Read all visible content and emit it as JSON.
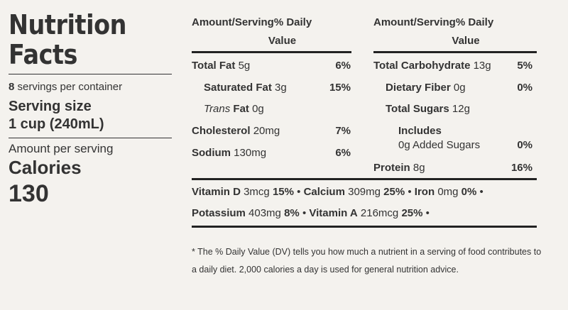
{
  "panel": {
    "title_line1": "Nutrition",
    "title_line2": "Facts",
    "servings_count": "8",
    "servings_text": " servings per container",
    "serving_size_label": "Serving size",
    "serving_size_value": "1 cup (240mL)",
    "amount_per_serving": "Amount per serving",
    "calories_label": "Calories",
    "calories_value": "130"
  },
  "header": {
    "line1": "Amount/Serving% Daily",
    "line2": "Value"
  },
  "left_table": [
    {
      "name": "Total Fat",
      "amount": "5g",
      "dv": "6%"
    },
    {
      "name": "Saturated Fat",
      "amount": "3g",
      "dv": "15%"
    },
    {
      "name": "Trans",
      "name_suffix": " Fat",
      "amount": "0g",
      "dv": ""
    },
    {
      "name": "Cholesterol",
      "amount": "20mg",
      "dv": "7%"
    },
    {
      "name": "Sodium",
      "amount": "130mg",
      "dv": "6%"
    }
  ],
  "right_table": [
    {
      "name": "Total Carbohydrate",
      "amount": "13g",
      "dv": "5%"
    },
    {
      "name": "Dietary Fiber",
      "amount": "0g",
      "dv": "0%"
    },
    {
      "name": "Total Sugars",
      "amount": "12g",
      "dv": ""
    },
    {
      "name": "Includes",
      "amount": "0g Added Sugars",
      "dv": "0%"
    },
    {
      "name": "Protein",
      "amount": "8g",
      "dv": "16%"
    }
  ],
  "minerals": {
    "vitd_name": "Vitamin D",
    "vitd_amount": "3mcg",
    "vitd_dv": "15%",
    "calcium_name": "Calcium",
    "calcium_amount": "309mg",
    "calcium_dv": "25%",
    "iron_name": "Iron",
    "iron_amount": "0mg",
    "iron_dv": "0%",
    "potassium_name": "Potassium",
    "potassium_amount": "403mg",
    "potassium_dv": "8%",
    "vita_name": "Vitamin A",
    "vita_amount": "216mcg",
    "vita_dv": "25%",
    "separator": "•"
  },
  "footnote": "* The % Daily Value (DV) tells you how much a nutrient in a serving of food contributes to a daily diet. 2,000 calories a day is used for general nutrition advice."
}
